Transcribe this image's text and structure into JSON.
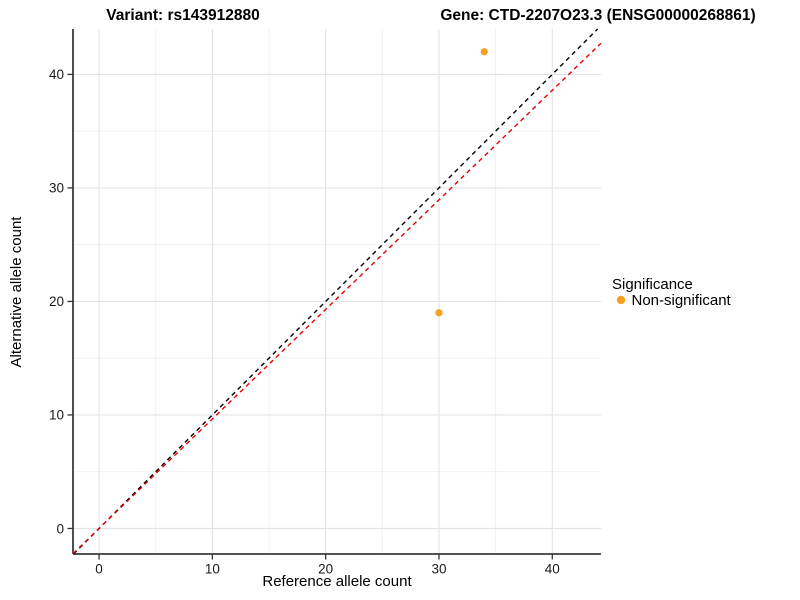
{
  "chart_data": {
    "type": "scatter",
    "title_left": "Variant: rs143912880",
    "title_right": "Gene: CTD-2207O23.3 (ENSG00000268861)",
    "xlabel": "Reference allele count",
    "ylabel": "Alternative allele count",
    "xlim": [
      -2.3,
      44.3
    ],
    "ylim": [
      -2.25,
      44.0
    ],
    "x_ticks": [
      0,
      10,
      20,
      30,
      40
    ],
    "y_ticks": [
      0,
      10,
      20,
      30,
      40
    ],
    "x_minor": [
      5,
      15,
      25,
      35
    ],
    "y_minor": [
      5,
      15,
      25,
      35
    ],
    "grid": true,
    "series": [
      {
        "name": "Non-significant",
        "color": "#F5A023",
        "points": [
          {
            "x": 34,
            "y": 42
          },
          {
            "x": 30,
            "y": 19
          }
        ]
      }
    ],
    "reference_lines": [
      {
        "name": "identity-line",
        "slope": 1.0,
        "intercept": 0,
        "color": "#000000",
        "style": "dashed"
      },
      {
        "name": "expected-ratio-line",
        "slope": 0.965,
        "intercept": 0,
        "color": "#E60000",
        "style": "dashed"
      }
    ],
    "legend": {
      "title": "Significance",
      "position": "right",
      "entries": [
        {
          "label": "Non-significant",
          "color": "#F5A023"
        }
      ]
    },
    "colors": {
      "major_grid": "#E3E3E3",
      "minor_grid": "#F0F0F0",
      "axis_line": "#3b3b3b",
      "tick_mark": "#333333"
    }
  }
}
